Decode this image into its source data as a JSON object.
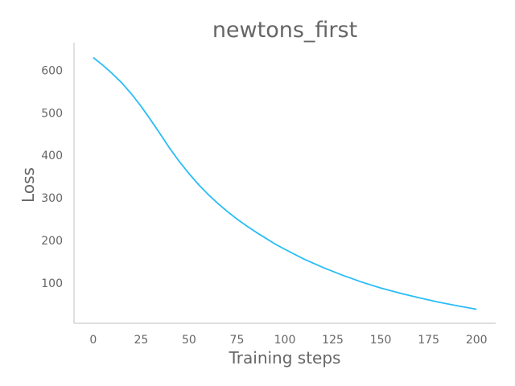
{
  "chart_data": {
    "type": "line",
    "title": "newtons_first",
    "xlabel": "Training steps",
    "ylabel": "Loss",
    "xlim": [
      -10,
      210
    ],
    "ylim": [
      5,
      665
    ],
    "xticks": [
      0,
      25,
      50,
      75,
      100,
      125,
      150,
      175,
      200
    ],
    "yticks": [
      100,
      200,
      300,
      400,
      500,
      600
    ],
    "grid": false,
    "series": [
      {
        "color": "#29bdf5",
        "x": [
          0,
          5,
          10,
          15,
          20,
          25,
          30,
          35,
          40,
          45,
          50,
          55,
          60,
          65,
          70,
          75,
          80,
          85,
          90,
          95,
          100,
          110,
          120,
          130,
          140,
          150,
          160,
          170,
          180,
          190,
          200
        ],
        "values": [
          630,
          612,
          592,
          570,
          544,
          515,
          483,
          450,
          416,
          385,
          357,
          331,
          308,
          287,
          268,
          250,
          234,
          219,
          205,
          191,
          179,
          156,
          136,
          118,
          102,
          88,
          76,
          65,
          55,
          46,
          38
        ]
      }
    ]
  },
  "colors": {
    "axis": "#cccccc",
    "text": "#666666",
    "line": "#29bdf5"
  }
}
